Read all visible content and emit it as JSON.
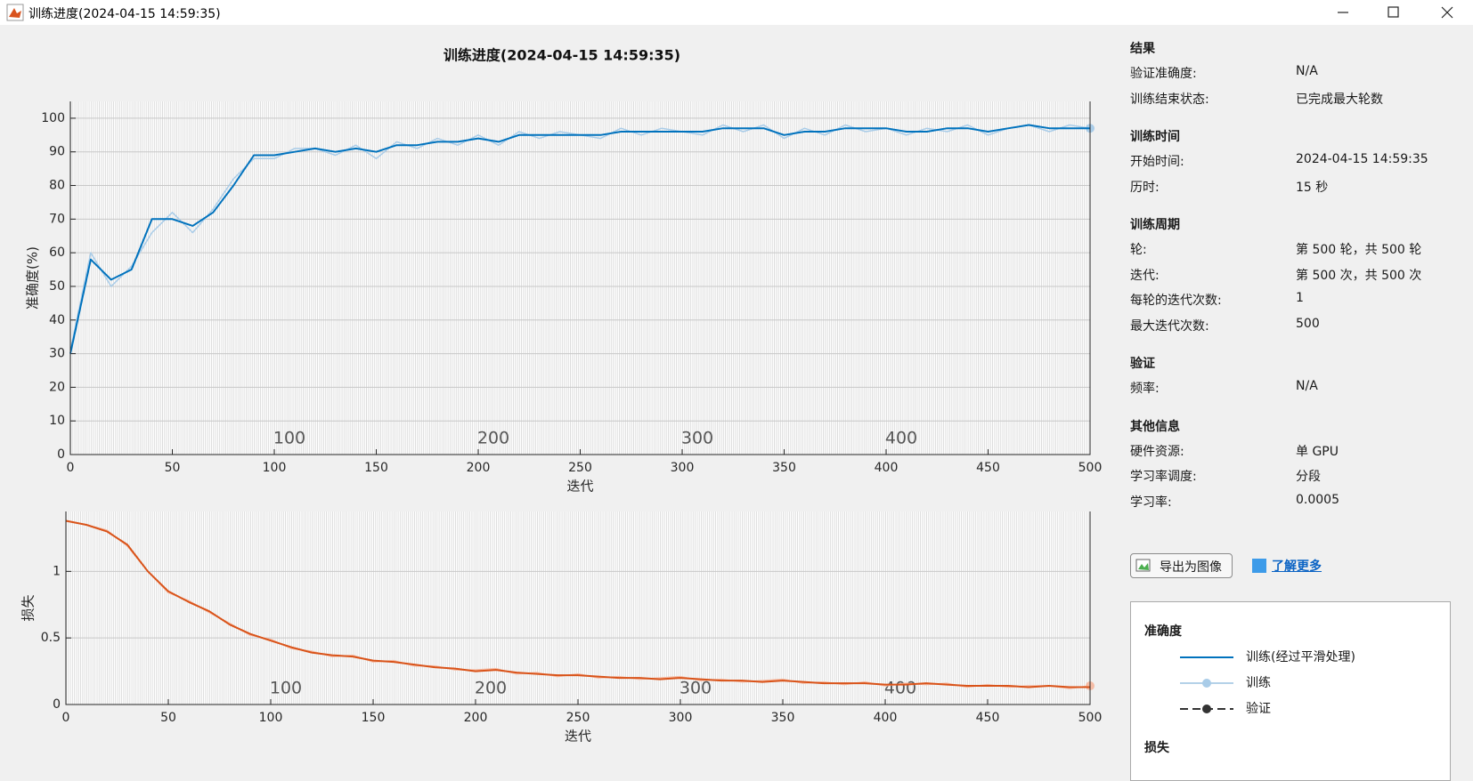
{
  "window": {
    "title": "训练进度(2024-04-15 14:59:35)"
  },
  "chart_data": [
    {
      "type": "line",
      "title": "训练进度(2024-04-15 14:59:35)",
      "xlabel": "迭代",
      "ylabel": "准确度(%)",
      "xlim": [
        0,
        500
      ],
      "xticks": [
        0,
        50,
        100,
        150,
        200,
        250,
        300,
        350,
        400,
        450,
        500
      ],
      "ylim": [
        0,
        105
      ],
      "yticks": [
        0,
        10,
        20,
        30,
        40,
        50,
        60,
        70,
        80,
        90,
        100
      ],
      "grid": true,
      "epoch_labels": [
        100,
        200,
        300,
        400
      ],
      "x": [
        0,
        10,
        20,
        30,
        40,
        50,
        60,
        70,
        80,
        90,
        100,
        110,
        120,
        130,
        140,
        150,
        160,
        170,
        180,
        190,
        200,
        210,
        220,
        230,
        240,
        250,
        260,
        270,
        280,
        290,
        300,
        310,
        320,
        330,
        340,
        350,
        360,
        370,
        380,
        390,
        400,
        410,
        420,
        430,
        440,
        450,
        460,
        470,
        480,
        490,
        500
      ],
      "series": [
        {
          "name": "训练",
          "color": "#a9cce8",
          "end_marker": true,
          "values": [
            31,
            60,
            50,
            56,
            66,
            72,
            66,
            73,
            82,
            88,
            88,
            91,
            91,
            89,
            92,
            88,
            93,
            91,
            94,
            92,
            95,
            92,
            96,
            94,
            96,
            95,
            94,
            97,
            95,
            97,
            96,
            95,
            98,
            96,
            98,
            94,
            97,
            95,
            98,
            96,
            97,
            95,
            97,
            96,
            98,
            95,
            97,
            98,
            96,
            98,
            97
          ]
        },
        {
          "name": "训练(经过平滑处理)",
          "color": "#0072bd",
          "values": [
            30,
            58,
            52,
            55,
            70,
            70,
            68,
            72,
            80,
            89,
            89,
            90,
            91,
            90,
            91,
            90,
            92,
            92,
            93,
            93,
            94,
            93,
            95,
            95,
            95,
            95,
            95,
            96,
            96,
            96,
            96,
            96,
            97,
            97,
            97,
            95,
            96,
            96,
            97,
            97,
            97,
            96,
            96,
            97,
            97,
            96,
            97,
            98,
            97,
            97,
            97
          ]
        }
      ]
    },
    {
      "type": "line",
      "xlabel": "迭代",
      "ylabel": "损失",
      "xlim": [
        0,
        500
      ],
      "xticks": [
        0,
        50,
        100,
        150,
        200,
        250,
        300,
        350,
        400,
        450,
        500
      ],
      "ylim": [
        0,
        1.45
      ],
      "yticks": [
        0,
        0.5,
        1
      ],
      "grid": true,
      "epoch_labels": [
        100,
        200,
        300,
        400
      ],
      "x": [
        0,
        10,
        20,
        30,
        40,
        50,
        60,
        70,
        80,
        90,
        100,
        110,
        120,
        130,
        140,
        150,
        160,
        170,
        180,
        190,
        200,
        210,
        220,
        230,
        240,
        250,
        260,
        270,
        280,
        290,
        300,
        310,
        320,
        330,
        340,
        350,
        360,
        370,
        380,
        390,
        400,
        410,
        420,
        430,
        440,
        450,
        460,
        470,
        480,
        490,
        500
      ],
      "series": [
        {
          "name": "训练",
          "color": "#f5bca5",
          "end_marker": true,
          "values": [
            1.38,
            1.35,
            1.31,
            1.19,
            1.0,
            0.84,
            0.78,
            0.69,
            0.61,
            0.52,
            0.49,
            0.42,
            0.4,
            0.36,
            0.37,
            0.32,
            0.33,
            0.29,
            0.29,
            0.26,
            0.26,
            0.27,
            0.23,
            0.24,
            0.21,
            0.23,
            0.2,
            0.21,
            0.19,
            0.2,
            0.21,
            0.18,
            0.19,
            0.17,
            0.18,
            0.19,
            0.16,
            0.17,
            0.15,
            0.17,
            0.14,
            0.16,
            0.15,
            0.16,
            0.13,
            0.15,
            0.13,
            0.14,
            0.14,
            0.12,
            0.14
          ]
        },
        {
          "name": "训练(经过平滑处理)",
          "color": "#d95319",
          "values": [
            1.38,
            1.35,
            1.3,
            1.2,
            1.0,
            0.85,
            0.77,
            0.7,
            0.6,
            0.53,
            0.48,
            0.43,
            0.39,
            0.37,
            0.36,
            0.33,
            0.32,
            0.3,
            0.28,
            0.27,
            0.25,
            0.26,
            0.24,
            0.23,
            0.22,
            0.22,
            0.21,
            0.2,
            0.2,
            0.19,
            0.2,
            0.19,
            0.18,
            0.18,
            0.17,
            0.18,
            0.17,
            0.16,
            0.16,
            0.16,
            0.15,
            0.15,
            0.16,
            0.15,
            0.14,
            0.14,
            0.14,
            0.13,
            0.14,
            0.13,
            0.13
          ]
        }
      ]
    }
  ],
  "panel": {
    "sections": [
      {
        "heading": "结果",
        "rows": [
          [
            "验证准确度:",
            "N/A"
          ],
          [
            "训练结束状态:",
            "已完成最大轮数"
          ]
        ]
      },
      {
        "heading": "训练时间",
        "rows": [
          [
            "开始时间:",
            "2024-04-15 14:59:35"
          ],
          [
            "历时:",
            "15 秒"
          ]
        ]
      },
      {
        "heading": "训练周期",
        "rows": [
          [
            "轮:",
            "第 500 轮，共 500 轮"
          ],
          [
            "迭代:",
            "第 500 次，共 500 次"
          ],
          [
            "每轮的迭代次数:",
            "1"
          ],
          [
            "最大迭代次数:",
            "500"
          ]
        ]
      },
      {
        "heading": "验证",
        "rows": [
          [
            "频率:",
            "N/A"
          ]
        ]
      },
      {
        "heading": "其他信息",
        "rows": [
          [
            "硬件资源:",
            "单 GPU"
          ],
          [
            "学习率调度:",
            "分段"
          ],
          [
            "学习率:",
            "0.0005"
          ]
        ]
      }
    ],
    "export_button": "导出为图像",
    "learn_more": "了解更多"
  },
  "legend": {
    "sections": [
      {
        "heading": "准确度",
        "entries": [
          "训练(经过平滑处理)",
          "训练",
          "验证"
        ]
      },
      {
        "heading": "损失",
        "entries": []
      }
    ]
  }
}
